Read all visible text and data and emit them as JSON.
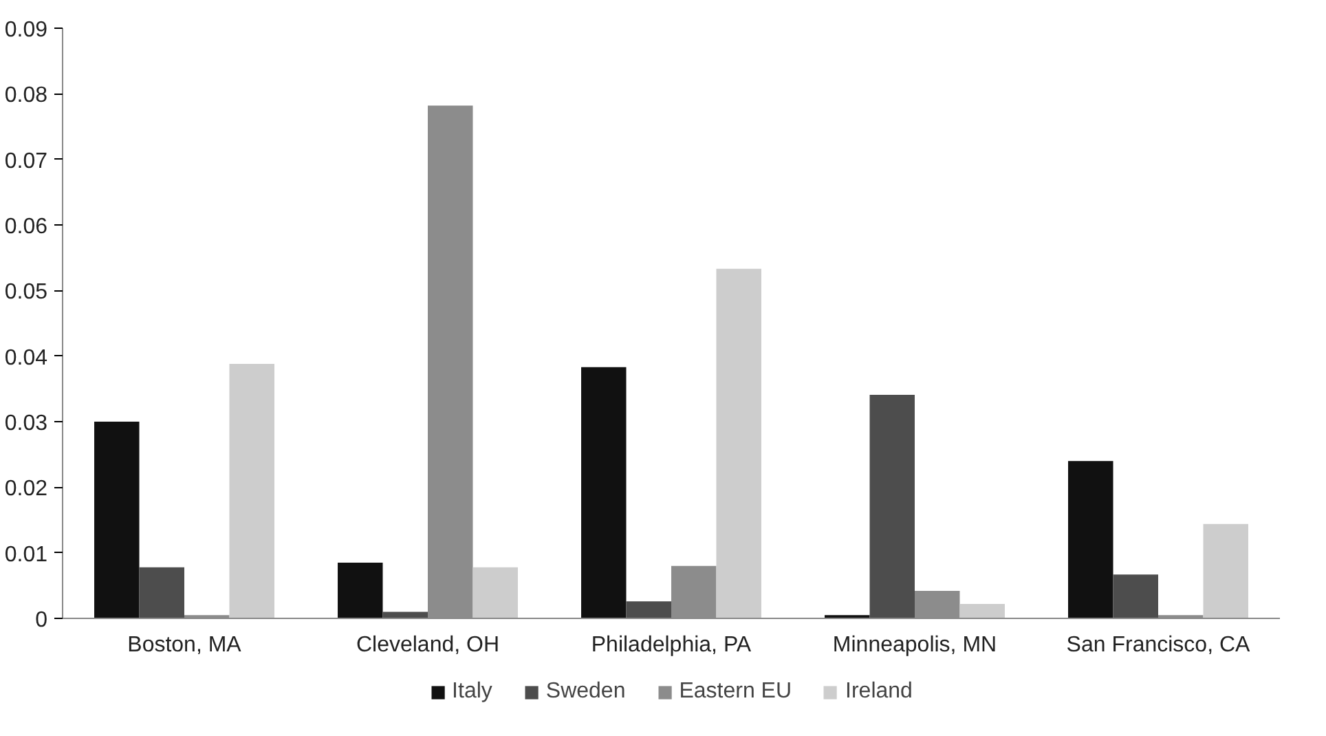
{
  "chart_data": {
    "type": "bar",
    "categories": [
      "Boston, MA",
      "Cleveland, OH",
      "Philadelphia, PA",
      "Minneapolis, MN",
      "San Francisco, CA"
    ],
    "series": [
      {
        "name": "Italy",
        "color": "#111111",
        "values": [
          0.03,
          0.0085,
          0.0383,
          0.0005,
          0.024
        ]
      },
      {
        "name": "Sweden",
        "color": "#4d4d4d",
        "values": [
          0.0078,
          0.001,
          0.0026,
          0.0341,
          0.0067
        ]
      },
      {
        "name": "Eastern EU",
        "color": "#8c8c8c",
        "values": [
          0.0005,
          0.0782,
          0.008,
          0.0042,
          0.0005
        ]
      },
      {
        "name": "Ireland",
        "color": "#cdcdcd",
        "values": [
          0.0388,
          0.0078,
          0.0533,
          0.0022,
          0.0144
        ]
      }
    ],
    "ylim": [
      0,
      0.09
    ],
    "yticks": [
      0,
      0.01,
      0.02,
      0.03,
      0.04,
      0.05,
      0.06,
      0.07,
      0.08,
      0.09
    ],
    "grid": false,
    "legend": "bottom"
  }
}
